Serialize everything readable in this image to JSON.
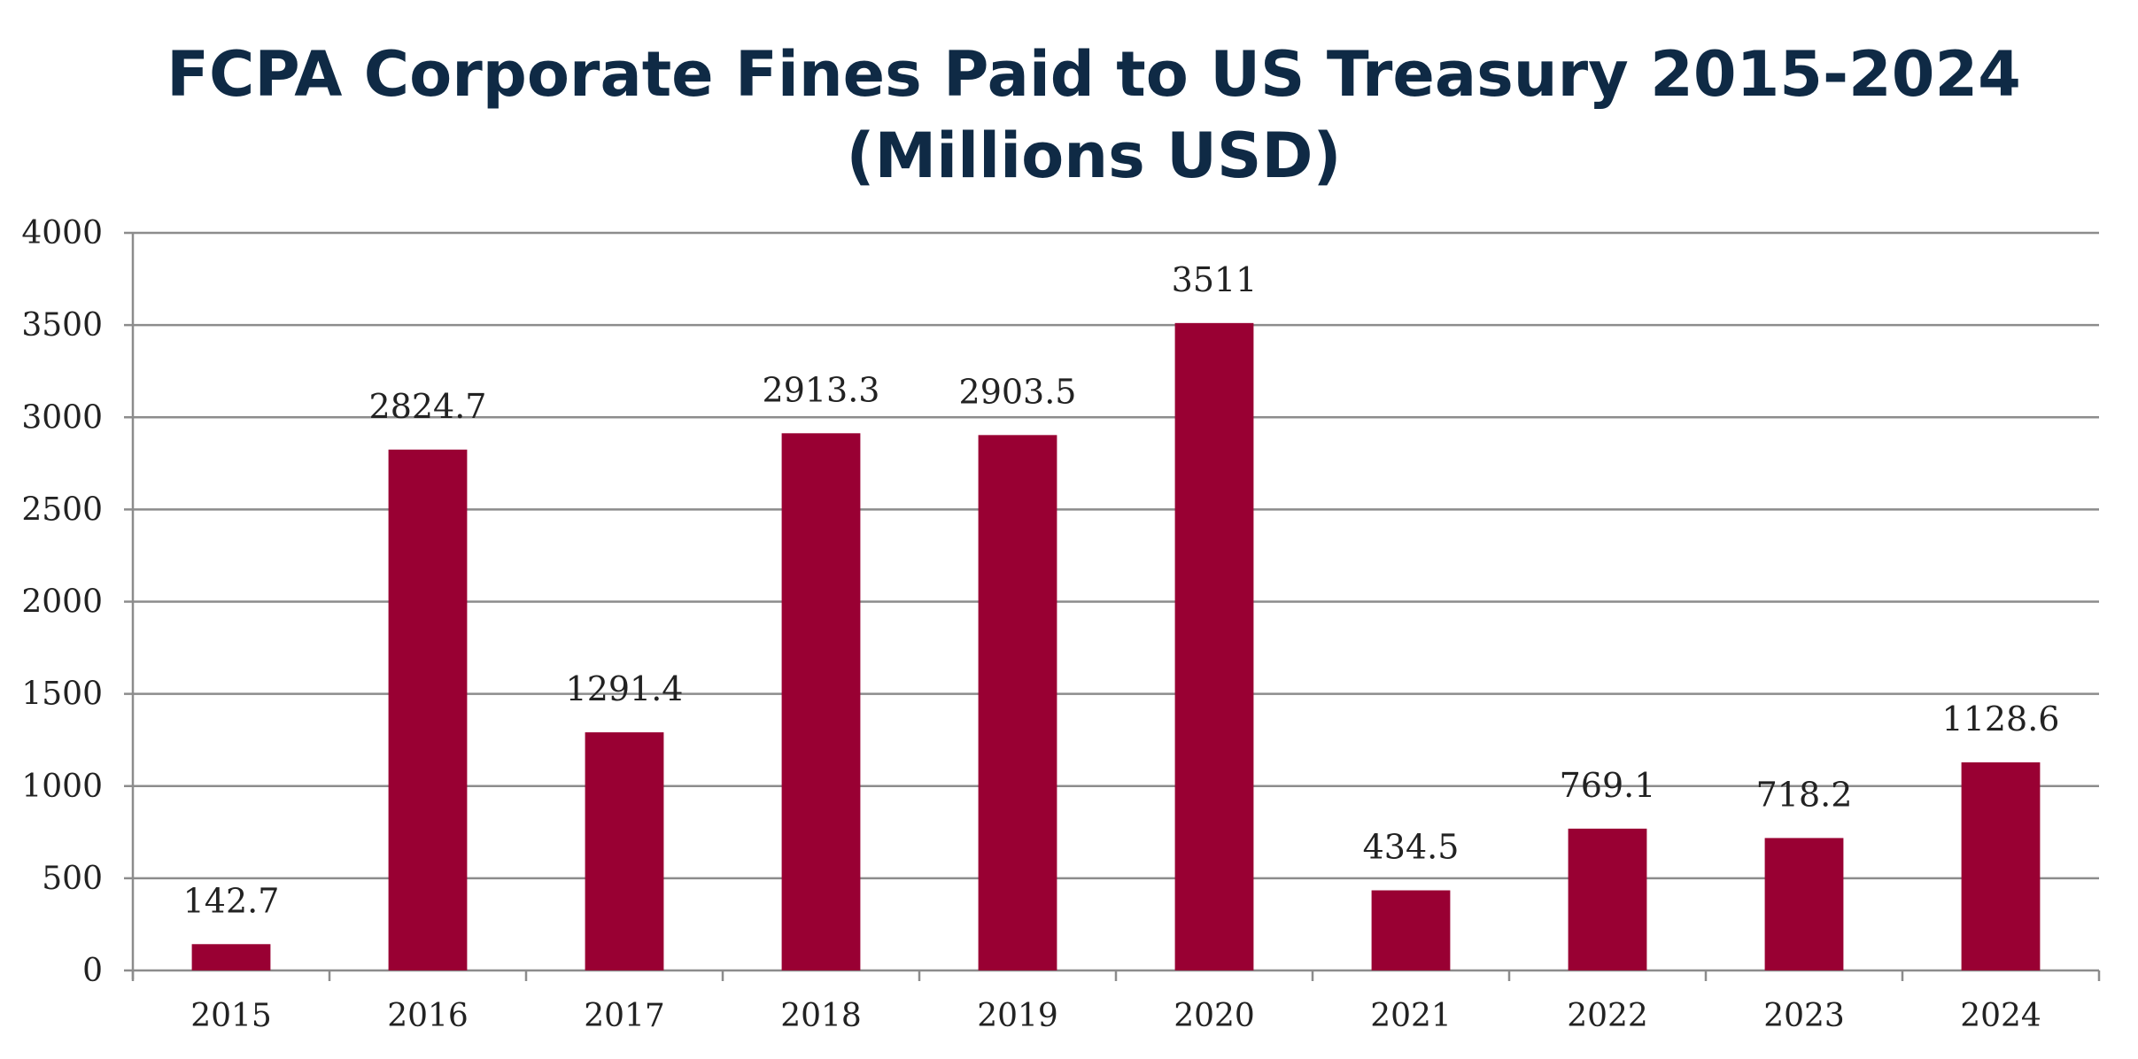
{
  "chart_data": {
    "type": "bar",
    "title": "FCPA Corporate Fines Paid to US Treasury 2015-2024",
    "subtitle": "(Millions USD)",
    "xlabel": "",
    "ylabel": "",
    "categories": [
      "2015",
      "2016",
      "2017",
      "2018",
      "2019",
      "2020",
      "2021",
      "2022",
      "2023",
      "2024"
    ],
    "values": [
      142.7,
      2824.7,
      1291.4,
      2913.3,
      2903.5,
      3511,
      434.5,
      769.1,
      718.2,
      1128.6
    ],
    "data_labels": [
      "142.7",
      "2824.7",
      "1291.4",
      "2913.3",
      "2903.5",
      "3511",
      "434.5",
      "769.1",
      "718.2",
      "1128.6"
    ],
    "ylim": [
      0,
      4000
    ],
    "yticks": [
      0,
      500,
      1000,
      1500,
      2000,
      2500,
      3000,
      3500,
      4000
    ],
    "grid": true,
    "legend": "none",
    "colors": {
      "bar": "#990033",
      "title": "#0f2a45",
      "grid": "#8c8c8c",
      "axis": "#8c8c8c",
      "text": "#222222"
    }
  }
}
